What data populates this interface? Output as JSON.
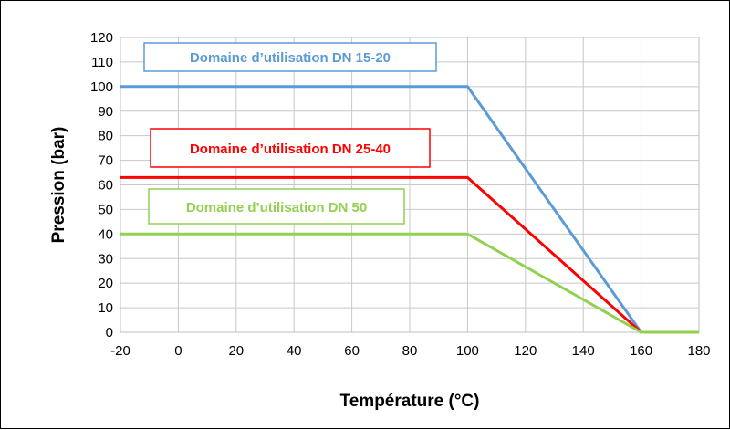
{
  "chart_data": {
    "type": "line",
    "xlabel": "Température (°C)",
    "ylabel": "Pression (bar)",
    "xlim": [
      -20,
      180
    ],
    "ylim": [
      0,
      120
    ],
    "x_ticks": [
      "-20",
      "0",
      "20",
      "40",
      "60",
      "80",
      "100",
      "120",
      "140",
      "160",
      "180"
    ],
    "y_ticks": [
      "0",
      "10",
      "20",
      "30",
      "40",
      "50",
      "60",
      "70",
      "80",
      "90",
      "100",
      "110",
      "120"
    ],
    "grid": true,
    "series": [
      {
        "name": "Domaine d’utilisation DN 15-20",
        "color": "#5b9bd5",
        "x": [
          -20,
          100,
          160,
          180
        ],
        "y": [
          100,
          100,
          0,
          0
        ]
      },
      {
        "name": "Domaine d’utilisation DN 25-40",
        "color": "#ff0000",
        "x": [
          -20,
          100,
          160,
          180
        ],
        "y": [
          63,
          63,
          0,
          0
        ]
      },
      {
        "name": "Domaine d’utilisation DN 50",
        "color": "#92d050",
        "x": [
          -20,
          100,
          160,
          180
        ],
        "y": [
          40,
          40,
          0,
          0
        ]
      }
    ]
  }
}
